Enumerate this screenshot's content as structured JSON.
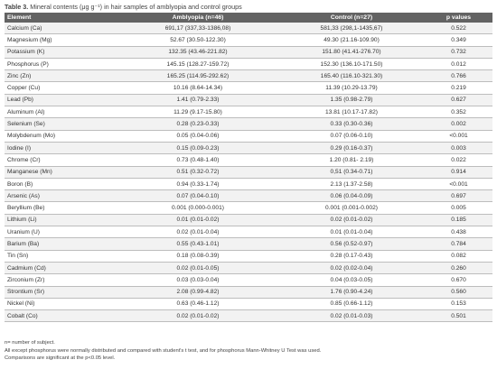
{
  "caption": {
    "label": "Table 3.",
    "text": "Mineral contents (μg g⁻¹) in hair samples of amblyopia and control groups"
  },
  "headers": [
    "Element",
    "Amblyopia (n=46)",
    "Control (n=27)",
    "p values"
  ],
  "rows": [
    [
      "Calcium (Ca)",
      "691,17 (337,33-1386,08)",
      "581,33 (298,1-1435,67)",
      "0.522"
    ],
    [
      "Magnesium (Mg)",
      "52.67 (30.50-122.30)",
      "49.30 (21.16-109.90)",
      "0.349"
    ],
    [
      "Potassium (K)",
      "132.35 (43.46-221.82)",
      "151.80 (41.41-276.70)",
      "0.732"
    ],
    [
      "Phosphorus (P)",
      "145.15 (128.27-159.72)",
      "152.30 (136.10-171.50)",
      "0.012"
    ],
    [
      "Zinc (Zn)",
      "165.25 (114.95-292.62)",
      "165.40 (116.10-321.30)",
      "0.766"
    ],
    [
      "Copper (Cu)",
      "10.16 (8.64-14.34)",
      "11.39 (10.29-13.79)",
      "0.219"
    ],
    [
      "Lead (Pb)",
      "1.41 (0.79-2.33)",
      "1.35 (0.98-2.79)",
      "0.627"
    ],
    [
      "Aluminum (Al)",
      "11.29 (9.17-15.80)",
      "13.81 (10.17-17.82)",
      "0.352"
    ],
    [
      "Selenium (Se)",
      "0.28 (0.23-0.33)",
      "0.33 (0.30-0.36)",
      "0.002"
    ],
    [
      "Molybdenum (Mo)",
      "0.05 (0.04-0.06)",
      "0.07 (0.06-0.10)",
      "<0.001"
    ],
    [
      "Iodine (I)",
      "0.15 (0.09-0.23)",
      "0.29 (0.16-0.37)",
      "0.003"
    ],
    [
      "Chrome (Cr)",
      "0.73 (0.48-1.40)",
      "1.20 (0.81- 2.19)",
      "0.022"
    ],
    [
      "Manganese (Mn)",
      "0.51 (0.32-0.72)",
      "0,51 (0.34-0.71)",
      "0.914"
    ],
    [
      "Boron (B)",
      "0.94 (0.33-1.74)",
      "2.13 (1.37-2.58)",
      "<0.001"
    ],
    [
      "Arsenic (As)",
      "0.07 (0.04-0.10)",
      "0.06 (0.04-0.09)",
      "0.697"
    ],
    [
      "Beryllium (Be)",
      "0.001 (0.000-0.001)",
      "0.001 (0.001-0.002)",
      "0.005"
    ],
    [
      "Lithium (Li)",
      "0.01 (0.01-0.02)",
      "0.02 (0.01-0.02)",
      "0.185"
    ],
    [
      "Uranium (U)",
      "0.02 (0.01-0.04)",
      "0.01 (0.01-0.04)",
      "0.438"
    ],
    [
      "Barium (Ba)",
      "0.55 (0.43-1.01)",
      "0.56 (0.52-0.97)",
      "0.784"
    ],
    [
      "Tin (Sn)",
      "0.18 (0.08-0.39)",
      "0.28 (0.17-0.43)",
      "0.082"
    ],
    [
      "Cadmium (Cd)",
      "0.02 (0.01-0.05)",
      "0.02 (0.02-0.04)",
      "0.260"
    ],
    [
      "Zirconium (Zr)",
      "0.03 (0.03-0.04)",
      "0.04 (0.03-0.05)",
      "0.670"
    ],
    [
      "Strontium (Sr)",
      "2.08 (0.99-4.82)",
      "1.76 (0.90-4.24)",
      "0.560"
    ],
    [
      "Nickel (Ni)",
      "0.63 (0.46-1.12)",
      "0.85 (0.66-1.12)",
      "0.153"
    ],
    [
      "Cobalt (Co)",
      "0.02 (0.01-0.02)",
      "0.02 (0.01-0.03)",
      "0.501"
    ]
  ],
  "notes": {
    "n_definition": "n= number of subject.",
    "methods": "All except phosphorus were normally distributed and compared with student's t test, and for phosphorus Mann-Whitney U Test  was used.",
    "significance": "Comparisons are significant at the p<0.05 level."
  },
  "colors": {
    "header_bg": "#636363",
    "header_text": "#ffffff",
    "stripe": "#f2f2f2"
  }
}
